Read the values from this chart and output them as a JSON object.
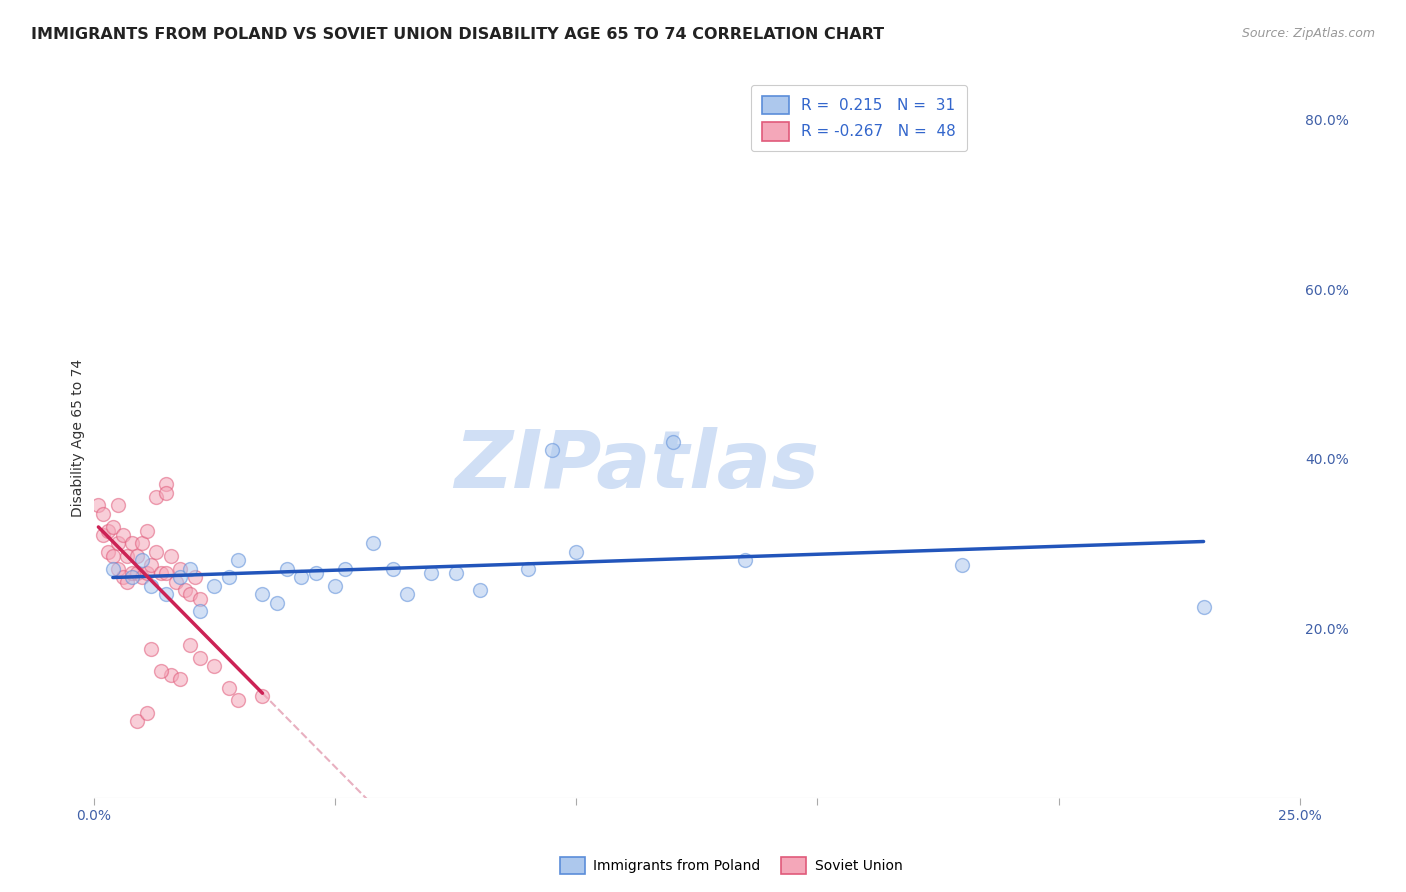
{
  "title": "IMMIGRANTS FROM POLAND VS SOVIET UNION DISABILITY AGE 65 TO 74 CORRELATION CHART",
  "source": "Source: ZipAtlas.com",
  "ylabel": "Disability Age 65 to 74",
  "poland_R": 0.215,
  "poland_N": 31,
  "soviet_R": -0.267,
  "soviet_N": 48,
  "poland_color": "#adc8ed",
  "soviet_color": "#f4a7b9",
  "poland_edge_color": "#5b8dd9",
  "soviet_edge_color": "#e05a7a",
  "poland_line_color": "#2255bb",
  "soviet_line_color": "#cc2255",
  "soviet_trend_dashed_color": "#e8b0c0",
  "watermark_color": "#d0dff5",
  "poland_points_x": [
    0.004,
    0.008,
    0.01,
    0.012,
    0.015,
    0.018,
    0.02,
    0.022,
    0.025,
    0.028,
    0.03,
    0.035,
    0.038,
    0.04,
    0.043,
    0.046,
    0.05,
    0.052,
    0.058,
    0.062,
    0.065,
    0.07,
    0.075,
    0.08,
    0.09,
    0.095,
    0.1,
    0.12,
    0.135,
    0.18,
    0.23
  ],
  "poland_points_y": [
    0.27,
    0.26,
    0.28,
    0.25,
    0.24,
    0.26,
    0.27,
    0.22,
    0.25,
    0.26,
    0.28,
    0.24,
    0.23,
    0.27,
    0.26,
    0.265,
    0.25,
    0.27,
    0.3,
    0.27,
    0.24,
    0.265,
    0.265,
    0.245,
    0.27,
    0.41,
    0.29,
    0.42,
    0.28,
    0.275,
    0.225
  ],
  "soviet_points_x": [
    0.001,
    0.002,
    0.002,
    0.003,
    0.003,
    0.004,
    0.004,
    0.005,
    0.005,
    0.005,
    0.006,
    0.006,
    0.007,
    0.007,
    0.008,
    0.008,
    0.009,
    0.009,
    0.01,
    0.01,
    0.011,
    0.011,
    0.012,
    0.013,
    0.014,
    0.015,
    0.015,
    0.016,
    0.017,
    0.018,
    0.019,
    0.02,
    0.021,
    0.022,
    0.013,
    0.015,
    0.016,
    0.018,
    0.02,
    0.022,
    0.025,
    0.028,
    0.03,
    0.035,
    0.012,
    0.014,
    0.009,
    0.011
  ],
  "soviet_points_y": [
    0.345,
    0.31,
    0.335,
    0.29,
    0.315,
    0.285,
    0.32,
    0.27,
    0.3,
    0.345,
    0.26,
    0.31,
    0.255,
    0.285,
    0.3,
    0.265,
    0.265,
    0.285,
    0.26,
    0.3,
    0.315,
    0.265,
    0.275,
    0.29,
    0.265,
    0.265,
    0.37,
    0.285,
    0.255,
    0.27,
    0.245,
    0.24,
    0.26,
    0.235,
    0.355,
    0.36,
    0.145,
    0.14,
    0.18,
    0.165,
    0.155,
    0.13,
    0.115,
    0.12,
    0.175,
    0.15,
    0.09,
    0.1
  ],
  "xlim": [
    0.0,
    0.25
  ],
  "ylim": [
    0.0,
    0.85
  ],
  "y_ticks_right": [
    0.2,
    0.4,
    0.6,
    0.8
  ],
  "y_tick_labels_right": [
    "20.0%",
    "40.0%",
    "60.0%",
    "80.0%"
  ],
  "x_ticks": [
    0.0,
    0.05,
    0.1,
    0.15,
    0.2,
    0.25
  ],
  "x_tick_labels": [
    "0.0%",
    "",
    "",
    "",
    "",
    "25.0%"
  ],
  "background_color": "#ffffff",
  "grid_color": "#c8d4e8",
  "title_fontsize": 11.5,
  "axis_label_fontsize": 10,
  "legend_fontsize": 11,
  "source_fontsize": 9,
  "scatter_size": 100,
  "scatter_alpha": 0.55,
  "scatter_linewidth": 1.0
}
